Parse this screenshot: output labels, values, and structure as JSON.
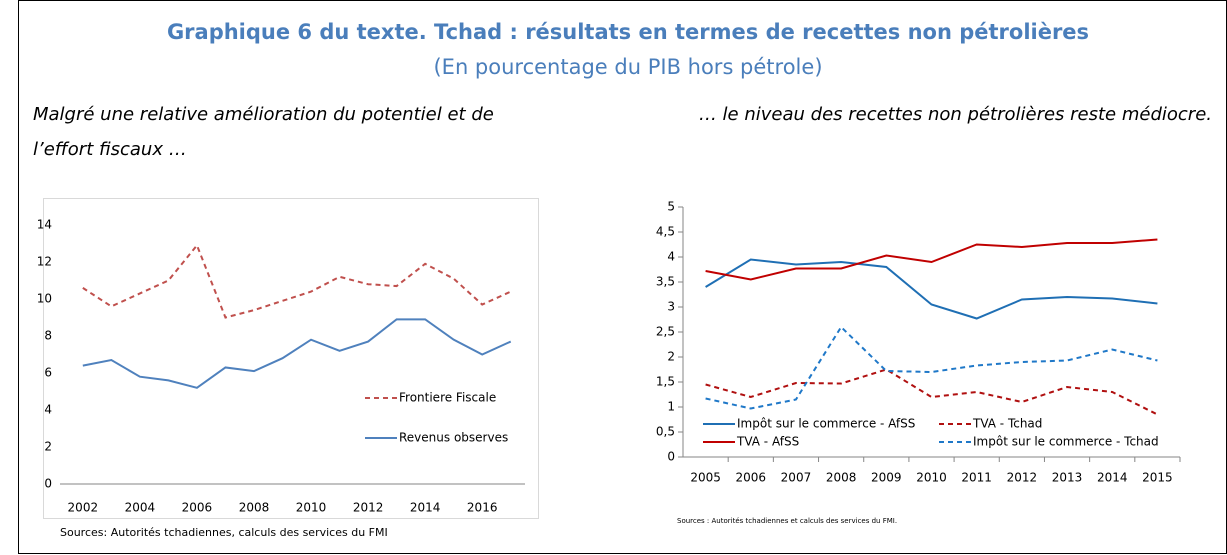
{
  "header": {
    "title": "Graphique 6 du texte. Tchad : résultats en termes de recettes non pétrolières",
    "subtitle": "(En pourcentage du PIB hors pétrole)"
  },
  "chart_data": [
    {
      "type": "line",
      "subtitle": "Malgré une relative amélioration du potentiel et de l’effort fiscaux …",
      "source": "Sources: Autorités tchadiennes, calculs des services du FMI",
      "x": [
        2002,
        2003,
        2004,
        2005,
        2006,
        2007,
        2008,
        2009,
        2010,
        2011,
        2012,
        2013,
        2014,
        2015,
        2016,
        2017
      ],
      "xlim": [
        2001.2,
        2017.5
      ],
      "xticks": [
        2002,
        2004,
        2006,
        2008,
        2010,
        2012,
        2014,
        2016
      ],
      "ylim": [
        0,
        14
      ],
      "yticks": [
        0,
        2,
        4,
        6,
        8,
        10,
        12,
        14
      ],
      "grid": false,
      "legend": "center right",
      "series": [
        {
          "name": "Frontiere Fiscale",
          "color": "#c0504d",
          "dash": true,
          "values": [
            10.6,
            9.6,
            10.3,
            11.0,
            12.9,
            9.0,
            9.4,
            9.9,
            10.4,
            11.2,
            10.8,
            10.7,
            11.9,
            11.1,
            9.7,
            10.4
          ]
        },
        {
          "name": "Revenus observes",
          "color": "#4f81bd",
          "dash": false,
          "values": [
            6.4,
            6.7,
            5.8,
            5.6,
            5.2,
            6.3,
            6.1,
            6.8,
            7.8,
            7.2,
            7.7,
            8.9,
            8.9,
            7.8,
            7.0,
            7.7
          ]
        }
      ]
    },
    {
      "type": "line",
      "subtitle": "… le niveau des recettes non pétrolières reste médiocre.",
      "source": "Sources : Autorités tchadiennes et calculs des services du FMI.",
      "categories": [
        "2005",
        "2006",
        "2007",
        "2008",
        "2009",
        "2010",
        "2011",
        "2012",
        "2013",
        "2014",
        "2015"
      ],
      "ylim": [
        0,
        5
      ],
      "yticks": [
        0,
        {
          "value": 0.5,
          "label": "0,5"
        },
        1,
        {
          "value": 1.5,
          "label": "1,5"
        },
        2,
        {
          "value": 2.5,
          "label": "2,5"
        },
        3,
        {
          "value": 3.5,
          "label": "3,5"
        },
        4,
        {
          "value": 4.5,
          "label": "4,5"
        },
        5
      ],
      "grid": false,
      "legend": "bottom",
      "series": [
        {
          "name": "Impôt sur le commerce - AfSS",
          "color": "#1f6fb4",
          "dash": false,
          "values": [
            3.4,
            3.95,
            3.85,
            3.9,
            3.8,
            3.05,
            2.77,
            3.15,
            3.2,
            3.17,
            3.07
          ]
        },
        {
          "name": "TVA - Tchad",
          "color": "#b01010",
          "dash": true,
          "values": [
            1.45,
            1.2,
            1.48,
            1.47,
            1.75,
            1.2,
            1.3,
            1.1,
            1.4,
            1.3,
            0.85
          ]
        },
        {
          "name": "TVA - AfSS",
          "color": "#c00000",
          "dash": false,
          "values": [
            3.72,
            3.55,
            3.77,
            3.77,
            4.03,
            3.9,
            4.25,
            4.2,
            4.28,
            4.28,
            4.35
          ]
        },
        {
          "name": "Impôt sur le commerce - Tchad",
          "color": "#1f78c8",
          "dash": true,
          "values": [
            1.17,
            0.97,
            1.15,
            2.6,
            1.72,
            1.7,
            1.83,
            1.9,
            1.93,
            2.15,
            1.93
          ]
        }
      ]
    }
  ]
}
